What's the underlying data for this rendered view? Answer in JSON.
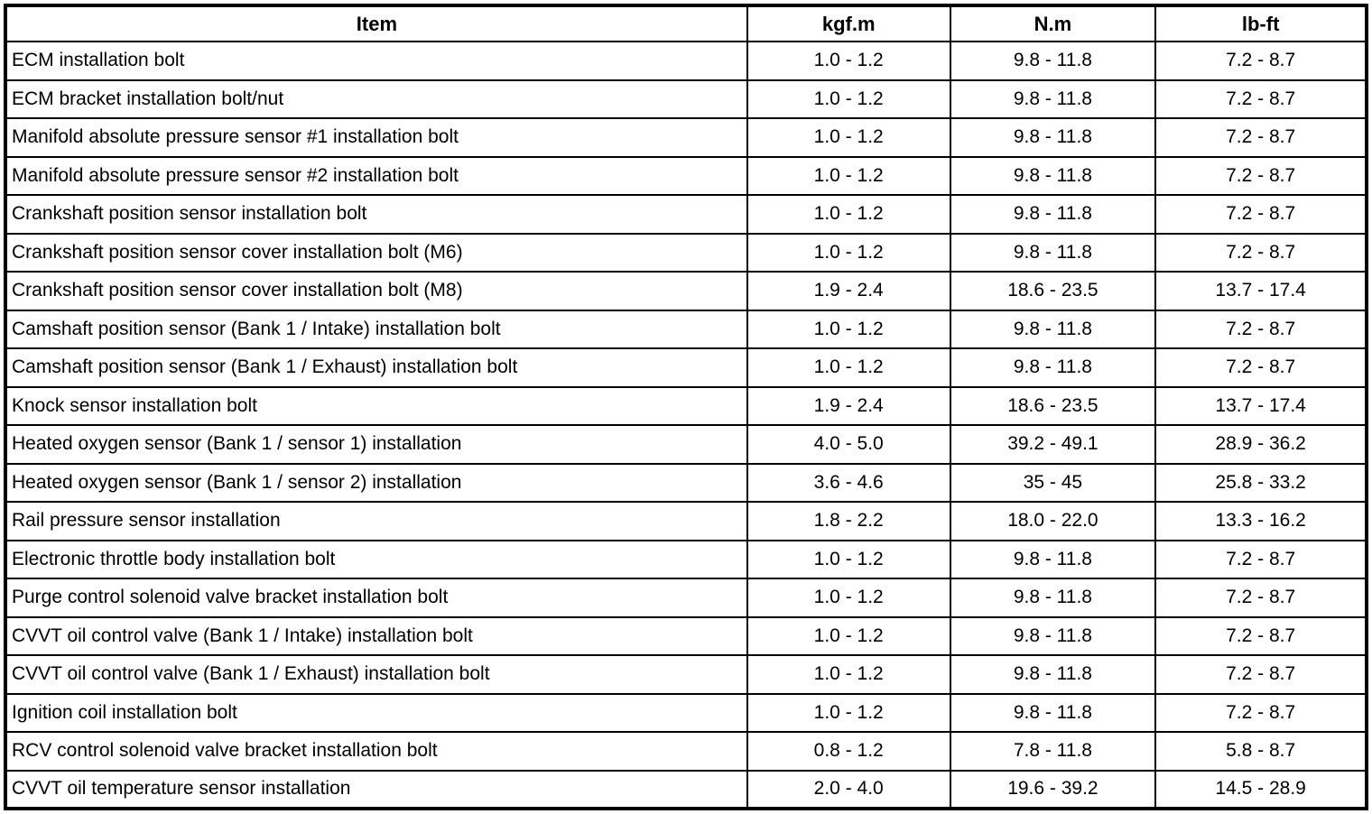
{
  "table": {
    "columns": [
      "Item",
      "kgf.m",
      "N.m",
      "lb-ft"
    ],
    "rows": [
      [
        "ECM installation bolt",
        "1.0 - 1.2",
        "9.8 - 11.8",
        "7.2 - 8.7"
      ],
      [
        "ECM bracket installation bolt/nut",
        "1.0 - 1.2",
        "9.8 - 11.8",
        "7.2 - 8.7"
      ],
      [
        "Manifold absolute pressure sensor #1 installation bolt",
        "1.0 - 1.2",
        "9.8 - 11.8",
        "7.2 - 8.7"
      ],
      [
        "Manifold absolute pressure sensor #2 installation bolt",
        "1.0 - 1.2",
        "9.8 - 11.8",
        "7.2 - 8.7"
      ],
      [
        "Crankshaft position sensor installation bolt",
        "1.0 - 1.2",
        "9.8 - 11.8",
        "7.2 - 8.7"
      ],
      [
        "Crankshaft position sensor cover installation bolt (M6)",
        "1.0 - 1.2",
        "9.8 - 11.8",
        "7.2 - 8.7"
      ],
      [
        "Crankshaft position sensor cover installation bolt (M8)",
        "1.9 - 2.4",
        "18.6 - 23.5",
        "13.7 - 17.4"
      ],
      [
        "Camshaft position sensor (Bank 1 / Intake) installation bolt",
        "1.0 - 1.2",
        "9.8 - 11.8",
        "7.2 - 8.7"
      ],
      [
        "Camshaft position sensor (Bank 1 / Exhaust) installation bolt",
        "1.0 - 1.2",
        "9.8 - 11.8",
        "7.2 - 8.7"
      ],
      [
        "Knock sensor installation bolt",
        "1.9 - 2.4",
        "18.6 - 23.5",
        "13.7 - 17.4"
      ],
      [
        "Heated oxygen sensor (Bank 1 / sensor 1) installation",
        "4.0 - 5.0",
        "39.2 - 49.1",
        "28.9 - 36.2"
      ],
      [
        "Heated oxygen sensor (Bank 1 / sensor 2) installation",
        "3.6 - 4.6",
        "35 - 45",
        "25.8 - 33.2"
      ],
      [
        "Rail pressure sensor installation",
        "1.8 - 2.2",
        "18.0 - 22.0",
        "13.3 - 16.2"
      ],
      [
        "Electronic throttle body installation bolt",
        "1.0 - 1.2",
        "9.8 - 11.8",
        "7.2 - 8.7"
      ],
      [
        "Purge control solenoid valve bracket installation bolt",
        "1.0 - 1.2",
        "9.8 - 11.8",
        "7.2 - 8.7"
      ],
      [
        "CVVT oil control valve (Bank 1 / Intake) installation bolt",
        "1.0 - 1.2",
        "9.8 - 11.8",
        "7.2 - 8.7"
      ],
      [
        "CVVT oil control valve (Bank 1 / Exhaust) installation bolt",
        "1.0 - 1.2",
        "9.8 - 11.8",
        "7.2 - 8.7"
      ],
      [
        "Ignition coil installation bolt",
        "1.0 - 1.2",
        "9.8 - 11.8",
        "7.2 - 8.7"
      ],
      [
        "RCV control solenoid valve bracket installation bolt",
        "0.8 - 1.2",
        "7.8 - 11.8",
        "5.8 - 8.7"
      ],
      [
        "CVVT oil temperature sensor installation",
        "2.0 - 4.0",
        "19.6 - 39.2",
        "14.5 - 28.9"
      ]
    ]
  }
}
